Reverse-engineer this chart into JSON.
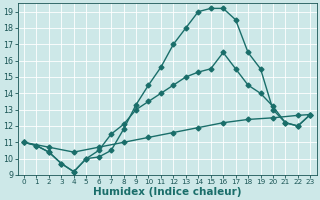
{
  "bg_color": "#cde8e8",
  "grid_color": "#b8d8d8",
  "line_color": "#1a6e6a",
  "line_width": 1.0,
  "marker": "D",
  "marker_size": 2.5,
  "xlim": [
    -0.5,
    23.5
  ],
  "ylim": [
    9.0,
    19.5
  ],
  "xticks": [
    0,
    1,
    2,
    3,
    4,
    5,
    6,
    7,
    8,
    9,
    10,
    11,
    12,
    13,
    14,
    15,
    16,
    17,
    18,
    19,
    20,
    21,
    22,
    23
  ],
  "yticks": [
    9,
    10,
    11,
    12,
    13,
    14,
    15,
    16,
    17,
    18,
    19
  ],
  "xlabel": "Humidex (Indice chaleur)",
  "xlabel_fontsize": 7.5,
  "tick_fontsize": 5.5,
  "curve1_x": [
    0,
    1,
    2,
    3,
    4,
    5,
    6,
    7,
    8,
    9,
    10,
    11,
    12,
    13,
    14,
    15,
    16,
    17,
    18,
    19,
    20,
    21,
    22,
    23
  ],
  "curve1_y": [
    11.0,
    10.8,
    10.4,
    9.7,
    9.2,
    10.0,
    10.1,
    10.5,
    11.8,
    13.3,
    14.5,
    15.6,
    17.0,
    18.0,
    19.0,
    19.2,
    19.2,
    18.5,
    16.5,
    15.5,
    13.0,
    12.2,
    12.0,
    12.7
  ],
  "curve2_x": [
    0,
    1,
    2,
    3,
    4,
    5,
    6,
    7,
    8,
    9,
    10,
    11,
    12,
    13,
    14,
    15,
    16,
    17,
    18,
    19,
    20,
    21,
    22,
    23
  ],
  "curve2_y": [
    11.0,
    10.8,
    10.4,
    9.7,
    9.2,
    10.0,
    10.5,
    11.5,
    12.1,
    13.0,
    13.5,
    14.0,
    14.5,
    15.0,
    15.3,
    15.5,
    16.5,
    15.5,
    14.5,
    14.0,
    13.2,
    12.2,
    12.0,
    12.7
  ],
  "line3_x": [
    0,
    2,
    4,
    6,
    8,
    10,
    12,
    14,
    16,
    18,
    20,
    22,
    23
  ],
  "line3_y": [
    11.0,
    10.7,
    10.4,
    10.7,
    11.0,
    11.3,
    11.6,
    11.9,
    12.2,
    12.4,
    12.5,
    12.65,
    12.7
  ]
}
